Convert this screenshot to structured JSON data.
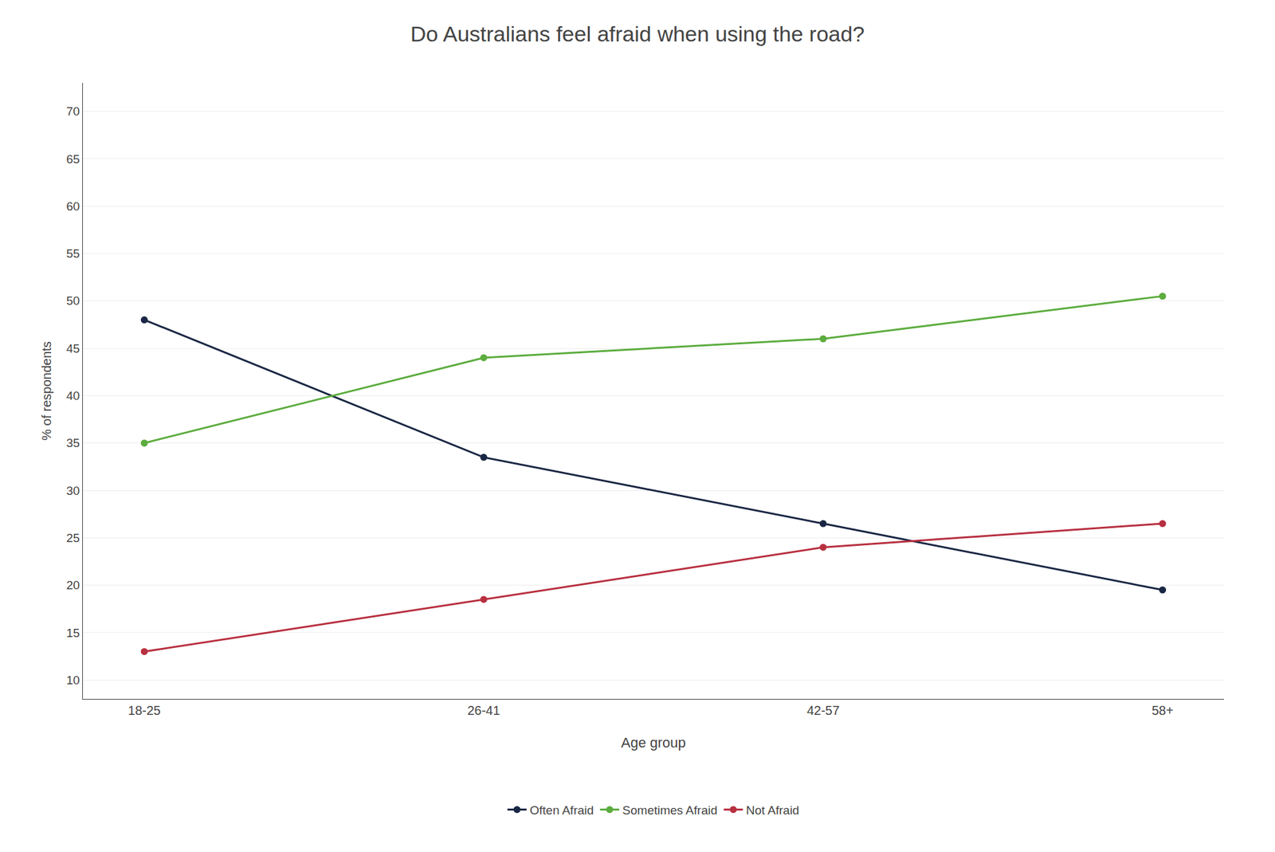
{
  "chart_data": {
    "type": "line",
    "title": "Do Australians feel afraid when using the road?",
    "xlabel": "Age group",
    "ylabel": "% of respondents",
    "categories": [
      "18-25",
      "26-41",
      "42-57",
      "58+"
    ],
    "series": [
      {
        "name": "Often Afraid",
        "color": "#1a2744",
        "values": [
          48,
          33.5,
          26.5,
          19.5
        ],
        "marker": "circle",
        "line_style": "solid"
      },
      {
        "name": "Sometimes Afraid",
        "color": "#5cac3e",
        "values": [
          35,
          44,
          46,
          50.5
        ],
        "marker": "circle",
        "line_style": "solid"
      },
      {
        "name": "Not Afraid",
        "color": "#b83040",
        "values": [
          13,
          18.5,
          24,
          26.5
        ],
        "marker": "circle",
        "line_style": "solid"
      }
    ],
    "ylim": [
      8,
      73
    ],
    "yticks": [
      10,
      15,
      20,
      25,
      30,
      35,
      40,
      45,
      50,
      55,
      60,
      65,
      70
    ],
    "grid": true,
    "legend": "bottom"
  }
}
